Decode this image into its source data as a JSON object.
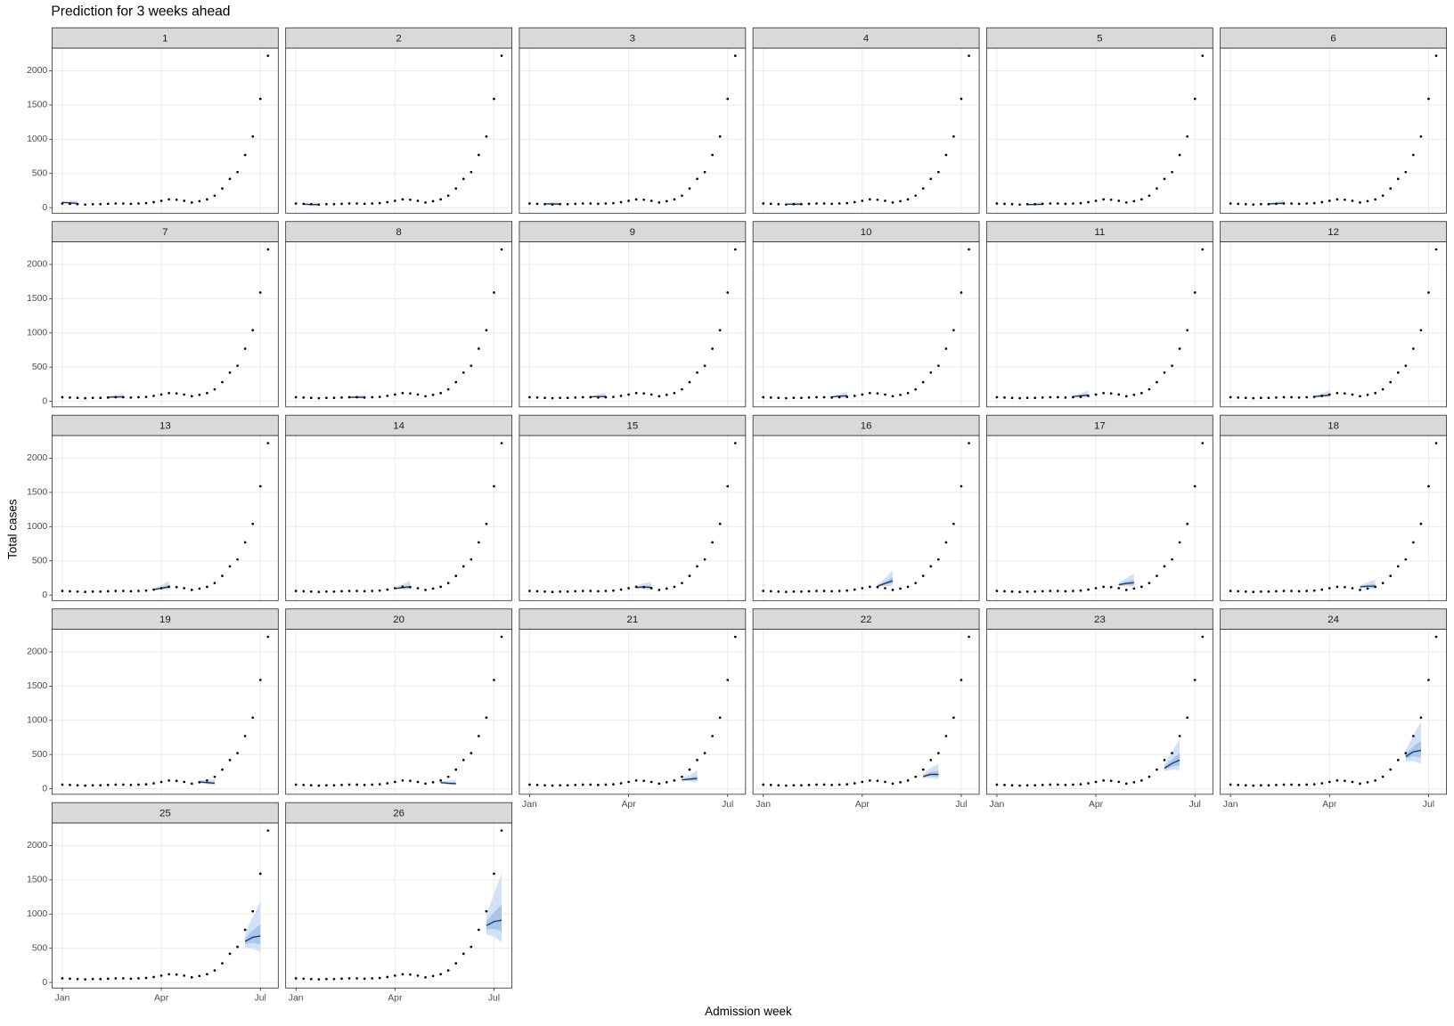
{
  "chart_data": {
    "type": "line",
    "title": "Prediction for 3 weeks ahead",
    "x_label": "Admission week",
    "y_label": "Total cases",
    "xlim": [
      -1.35,
      28.35
    ],
    "ylim": [
      -81,
      2330
    ],
    "xticks": [
      {
        "value": 0,
        "label": "Jan"
      },
      {
        "value": 13,
        "label": "Apr"
      },
      {
        "value": 26,
        "label": "Jul"
      }
    ],
    "yticks": [
      0,
      500,
      1000,
      1500,
      2000
    ],
    "grid": true,
    "ncol": 6,
    "colors": {
      "outer": "#d3e1f5",
      "inner": "#a9c5ed",
      "line": "#1f3a5f",
      "points": "#000000"
    },
    "observed": {
      "x": [
        0,
        1,
        2,
        3,
        4,
        5,
        6,
        7,
        8,
        9,
        10,
        11,
        12,
        13,
        14,
        15,
        16,
        17,
        18,
        19,
        20,
        21,
        22,
        23,
        24,
        25,
        26,
        27
      ],
      "values": [
        60,
        55,
        50,
        45,
        50,
        50,
        55,
        60,
        60,
        55,
        60,
        65,
        80,
        100,
        120,
        115,
        100,
        75,
        95,
        120,
        175,
        280,
        420,
        520,
        770,
        1040,
        1590,
        2220
      ]
    },
    "panels": [
      {
        "label": "1",
        "x": [
          0,
          1,
          2
        ],
        "median": [
          75,
          70,
          60
        ],
        "lo90": [
          64,
          53,
          39
        ],
        "lo50": [
          70,
          62,
          49
        ],
        "hi50": [
          81,
          81,
          75
        ],
        "hi90": [
          90,
          102,
          105
        ]
      },
      {
        "label": "2",
        "x": [
          1,
          2,
          3
        ],
        "median": [
          50,
          45,
          45
        ],
        "lo90": [
          43,
          34,
          29
        ],
        "lo50": [
          47,
          40,
          37
        ],
        "hi50": [
          54,
          52,
          56
        ],
        "hi90": [
          60,
          65,
          79
        ]
      },
      {
        "label": "3",
        "x": [
          2,
          3,
          4
        ],
        "median": [
          55,
          55,
          50
        ],
        "lo90": [
          47,
          41,
          33
        ],
        "lo50": [
          51,
          48,
          41
        ],
        "hi50": [
          59,
          63,
          63
        ],
        "hi90": [
          66,
          80,
          88
        ]
      },
      {
        "label": "4",
        "x": [
          3,
          4,
          5
        ],
        "median": [
          50,
          50,
          50
        ],
        "lo90": [
          43,
          38,
          33
        ],
        "lo50": [
          47,
          44,
          41
        ],
        "hi50": [
          54,
          58,
          63
        ],
        "hi90": [
          60,
          73,
          88
        ]
      },
      {
        "label": "5",
        "x": [
          4,
          5,
          6
        ],
        "median": [
          45,
          45,
          50
        ],
        "lo90": [
          38,
          34,
          33
        ],
        "lo50": [
          42,
          40,
          41
        ],
        "hi50": [
          49,
          52,
          63
        ],
        "hi90": [
          54,
          65,
          88
        ]
      },
      {
        "label": "6",
        "x": [
          5,
          6,
          7
        ],
        "median": [
          55,
          60,
          65
        ],
        "lo90": [
          47,
          45,
          42
        ],
        "lo50": [
          51,
          53,
          53
        ],
        "hi50": [
          59,
          69,
          81
        ],
        "hi90": [
          66,
          87,
          114
        ]
      },
      {
        "label": "7",
        "x": [
          6,
          7,
          8
        ],
        "median": [
          60,
          65,
          65
        ],
        "lo90": [
          51,
          49,
          42
        ],
        "lo50": [
          56,
          57,
          53
        ],
        "hi50": [
          65,
          75,
          81
        ],
        "hi90": [
          72,
          94,
          114
        ]
      },
      {
        "label": "8",
        "x": [
          7,
          8,
          9
        ],
        "median": [
          60,
          60,
          60
        ],
        "lo90": [
          51,
          45,
          39
        ],
        "lo50": [
          56,
          53,
          49
        ],
        "hi50": [
          65,
          69,
          75
        ],
        "hi90": [
          72,
          87,
          105
        ]
      },
      {
        "label": "9",
        "x": [
          8,
          9,
          10
        ],
        "median": [
          65,
          70,
          70
        ],
        "lo90": [
          55,
          53,
          46
        ],
        "lo50": [
          60,
          62,
          57
        ],
        "hi50": [
          70,
          81,
          88
        ],
        "hi90": [
          78,
          102,
          123
        ]
      },
      {
        "label": "10",
        "x": [
          9,
          10,
          11
        ],
        "median": [
          65,
          75,
          80
        ],
        "lo90": [
          55,
          56,
          52
        ],
        "lo50": [
          60,
          66,
          66
        ],
        "hi50": [
          70,
          86,
          100
        ],
        "hi90": [
          78,
          109,
          140
        ]
      },
      {
        "label": "11",
        "x": [
          10,
          11,
          12
        ],
        "median": [
          70,
          80,
          90
        ],
        "lo90": [
          60,
          60,
          59
        ],
        "lo50": [
          65,
          70,
          74
        ],
        "hi50": [
          76,
          92,
          113
        ],
        "hi90": [
          84,
          116,
          158
        ]
      },
      {
        "label": "12",
        "x": [
          11,
          12,
          13
        ],
        "median": [
          70,
          80,
          90
        ],
        "lo90": [
          60,
          60,
          59
        ],
        "lo50": [
          65,
          70,
          74
        ],
        "hi50": [
          76,
          92,
          113
        ],
        "hi90": [
          84,
          116,
          158
        ]
      },
      {
        "label": "13",
        "x": [
          12,
          13,
          14
        ],
        "median": [
          80,
          100,
          120
        ],
        "lo90": [
          68,
          75,
          78
        ],
        "lo50": [
          74,
          88,
          98
        ],
        "hi50": [
          86,
          115,
          150
        ],
        "hi90": [
          96,
          145,
          210
        ]
      },
      {
        "label": "14",
        "x": [
          13,
          14,
          15
        ],
        "median": [
          95,
          110,
          120
        ],
        "lo90": [
          81,
          83,
          78
        ],
        "lo50": [
          88,
          97,
          98
        ],
        "hi50": [
          103,
          127,
          150
        ],
        "hi90": [
          114,
          160,
          210
        ]
      },
      {
        "label": "15",
        "x": [
          14,
          15,
          16
        ],
        "median": [
          110,
          120,
          110
        ],
        "lo90": [
          94,
          90,
          72
        ],
        "lo50": [
          102,
          106,
          90
        ],
        "hi50": [
          119,
          138,
          138
        ],
        "hi90": [
          132,
          174,
          193
        ]
      },
      {
        "label": "16",
        "x": [
          15,
          16,
          17
        ],
        "median": [
          130,
          170,
          210
        ],
        "lo90": [
          111,
          128,
          137
        ],
        "lo50": [
          121,
          150,
          172
        ],
        "hi50": [
          140,
          196,
          263
        ],
        "hi90": [
          156,
          247,
          368
        ]
      },
      {
        "label": "17",
        "x": [
          16,
          17,
          18
        ],
        "median": [
          150,
          170,
          180
        ],
        "lo90": [
          128,
          128,
          117
        ],
        "lo50": [
          140,
          150,
          148
        ],
        "hi50": [
          162,
          196,
          225
        ],
        "hi90": [
          180,
          247,
          315
        ]
      },
      {
        "label": "18",
        "x": [
          17,
          18,
          19
        ],
        "median": [
          120,
          130,
          130
        ],
        "lo90": [
          102,
          98,
          85
        ],
        "lo50": [
          112,
          114,
          107
        ],
        "hi50": [
          130,
          150,
          163
        ],
        "hi90": [
          144,
          189,
          228
        ]
      },
      {
        "label": "19",
        "x": [
          18,
          19,
          20
        ],
        "median": [
          100,
          90,
          80
        ],
        "lo90": [
          85,
          68,
          52
        ],
        "lo50": [
          93,
          79,
          66
        ],
        "hi50": [
          108,
          104,
          100
        ],
        "hi90": [
          120,
          131,
          140
        ]
      },
      {
        "label": "20",
        "x": [
          19,
          20,
          21
        ],
        "median": [
          90,
          80,
          75
        ],
        "lo90": [
          77,
          60,
          49
        ],
        "lo50": [
          84,
          70,
          62
        ],
        "hi50": [
          97,
          92,
          94
        ],
        "hi90": [
          108,
          116,
          131
        ]
      },
      {
        "label": "21",
        "x": [
          20,
          21,
          22
        ],
        "median": [
          130,
          140,
          150
        ],
        "lo90": [
          111,
          105,
          98
        ],
        "lo50": [
          121,
          123,
          123
        ],
        "hi50": [
          140,
          161,
          188
        ],
        "hi90": [
          156,
          203,
          263
        ]
      },
      {
        "label": "22",
        "x": [
          21,
          22,
          23
        ],
        "median": [
          180,
          210,
          210
        ],
        "lo90": [
          153,
          158,
          137
        ],
        "lo50": [
          167,
          185,
          172
        ],
        "hi50": [
          194,
          242,
          263
        ],
        "hi90": [
          216,
          305,
          368
        ]
      },
      {
        "label": "23",
        "x": [
          22,
          23,
          24
        ],
        "median": [
          300,
          370,
          420
        ],
        "lo90": [
          255,
          278,
          273
        ],
        "lo50": [
          279,
          326,
          344
        ],
        "hi50": [
          324,
          426,
          525
        ],
        "hi90": [
          360,
          537,
          735
        ]
      },
      {
        "label": "24",
        "x": [
          23,
          24,
          25
        ],
        "median": [
          470,
          540,
          560
        ],
        "lo90": [
          400,
          405,
          364
        ],
        "lo50": [
          437,
          475,
          459
        ],
        "hi50": [
          508,
          621,
          700
        ],
        "hi90": [
          564,
          783,
          980
        ]
      },
      {
        "label": "25",
        "x": [
          24,
          25,
          26
        ],
        "median": [
          600,
          660,
          680
        ],
        "lo90": [
          510,
          495,
          442
        ],
        "lo50": [
          558,
          581,
          558
        ],
        "hi50": [
          648,
          759,
          850
        ],
        "hi90": [
          720,
          957,
          1190
        ]
      },
      {
        "label": "26",
        "x": [
          25,
          26,
          27
        ],
        "median": [
          830,
          890,
          910
        ],
        "lo90": [
          706,
          668,
          592
        ],
        "lo50": [
          772,
          783,
          746
        ],
        "hi50": [
          896,
          1024,
          1138
        ],
        "hi90": [
          996,
          1291,
          1593
        ]
      }
    ]
  }
}
